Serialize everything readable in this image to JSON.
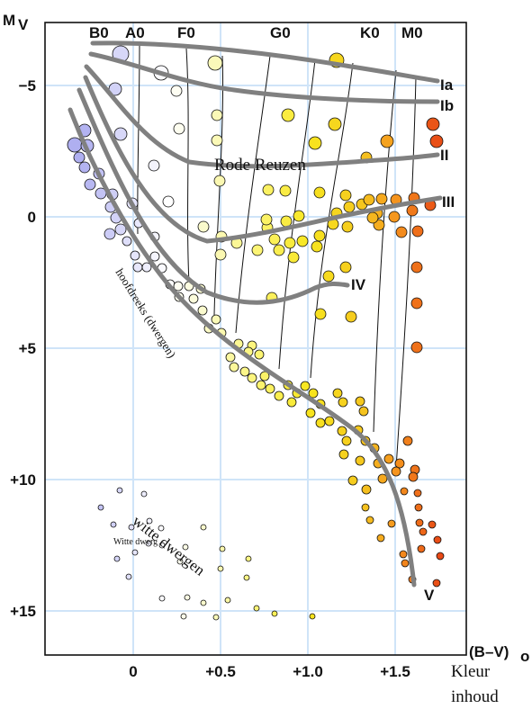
{
  "axes": {
    "y_label": "M",
    "y_label_sub": "V",
    "x_label": "(B–V)",
    "x_label_sub": "o",
    "x_caption_line1": "Kleur",
    "x_caption_line2": "inhoud",
    "x_ticks": [
      {
        "label": "0",
        "value": 0
      },
      {
        "label": "+0.5",
        "value": 0.5
      },
      {
        "label": "+1.0",
        "value": 1.0
      },
      {
        "label": "+1.5",
        "value": 1.5
      }
    ],
    "y_ticks": [
      {
        "label": "−5",
        "value": -5
      },
      {
        "label": "0",
        "value": 0
      },
      {
        "label": "+5",
        "value": 5
      },
      {
        "label": "+10",
        "value": 10
      },
      {
        "label": "+15",
        "value": 15
      }
    ]
  },
  "spectral_types": [
    {
      "label": "B0",
      "value": -0.2
    },
    {
      "label": "A0",
      "value": 0.02
    },
    {
      "label": "F0",
      "value": 0.32
    },
    {
      "label": "G0",
      "value": 0.85
    },
    {
      "label": "K0",
      "value": 1.36
    },
    {
      "label": "M0",
      "value": 1.6
    }
  ],
  "luminosity_classes": [
    "Ia",
    "Ib",
    "II",
    "III",
    "IV",
    "V"
  ],
  "regions": {
    "giants": "Rode Reuzen",
    "main_sequence": "hoofdreeks (dwergen)",
    "white_dwarfs": "witte dwergen",
    "white_dwarfs_small": "Witte dwerg"
  },
  "colors": {
    "grid": "#cfe4f8",
    "track": "#808080",
    "frame": "#111111"
  }
}
